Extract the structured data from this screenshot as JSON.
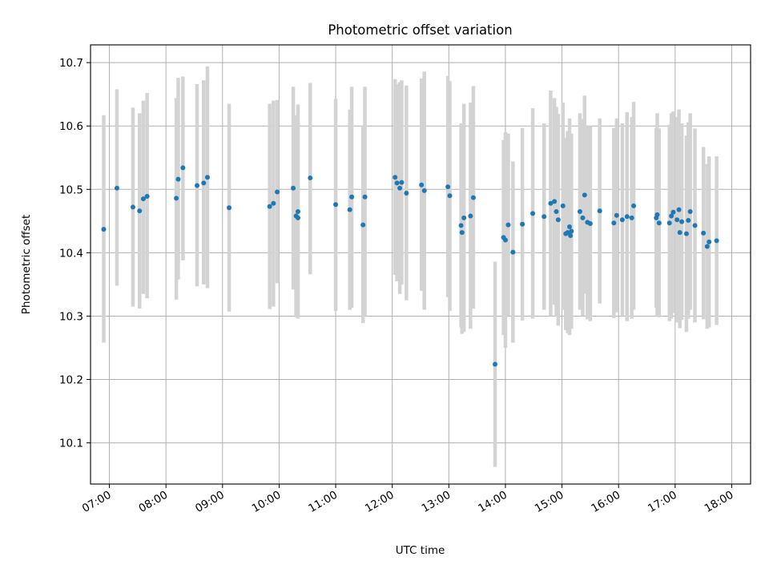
{
  "chart_data": {
    "type": "scatter",
    "title": "Photometric offset variation",
    "xlabel": "UTC time",
    "ylabel": "Photometric offset",
    "x_unit": "hours UTC",
    "xlim": [
      "06:40",
      "18:20"
    ],
    "ylim": [
      10.035,
      10.728
    ],
    "grid": true,
    "x_ticks": [
      "07:00",
      "08:00",
      "09:00",
      "10:00",
      "11:00",
      "12:00",
      "13:00",
      "14:00",
      "15:00",
      "16:00",
      "17:00",
      "18:00"
    ],
    "y_ticks": [
      "10.1",
      "10.2",
      "10.3",
      "10.4",
      "10.5",
      "10.6",
      "10.7"
    ],
    "colors": {
      "points": "#1f77b4",
      "errorbars": "#d3d3d3",
      "grid": "#b0b0b0"
    },
    "series": [
      {
        "x": [
          "06:54",
          "07:08",
          "07:25",
          "07:32",
          "07:36",
          "07:40",
          "08:11",
          "08:13",
          "08:18",
          "08:33",
          "08:40",
          "08:44",
          "09:07",
          "09:58",
          "09:50",
          "09:54",
          "10:15",
          "10:18",
          "10:20",
          "10:20",
          "10:33",
          "11:00",
          "11:15",
          "11:17",
          "11:29",
          "11:31",
          "12:03",
          "12:05",
          "12:08",
          "12:10",
          "12:15",
          "12:31",
          "12:34",
          "12:59",
          "13:01",
          "13:13",
          "13:14",
          "13:16",
          "13:23",
          "13:26",
          "13:49",
          "13:58",
          "14:00",
          "14:03",
          "14:08",
          "14:18",
          "14:29",
          "14:41",
          "14:48",
          "14:52",
          "14:54",
          "14:56",
          "15:01",
          "15:04",
          "15:06",
          "15:08",
          "15:09",
          "15:10",
          "15:19",
          "15:22",
          "15:24",
          "15:27",
          "15:30",
          "15:40",
          "15:55",
          "15:58",
          "16:04",
          "16:09",
          "16:14",
          "16:16",
          "16:40",
          "16:41",
          "16:43",
          "16:54",
          "16:56",
          "16:58",
          "17:02",
          "17:04",
          "17:05",
          "17:07",
          "17:12",
          "17:14",
          "17:16",
          "17:21",
          "17:30",
          "17:34",
          "17:36",
          "17:44"
        ],
        "y": [
          10.437,
          10.502,
          10.472,
          10.466,
          10.485,
          10.489,
          10.486,
          10.516,
          10.534,
          10.506,
          10.51,
          10.519,
          10.471,
          10.496,
          10.473,
          10.478,
          10.502,
          10.458,
          10.465,
          10.455,
          10.518,
          10.476,
          10.468,
          10.488,
          10.444,
          10.488,
          10.519,
          10.51,
          10.502,
          10.511,
          10.494,
          10.507,
          10.498,
          10.504,
          10.49,
          10.443,
          10.432,
          10.455,
          10.458,
          10.487,
          10.224,
          10.424,
          10.42,
          10.444,
          10.401,
          10.445,
          10.462,
          10.457,
          10.478,
          10.481,
          10.465,
          10.452,
          10.474,
          10.43,
          10.432,
          10.441,
          10.427,
          10.434,
          10.465,
          10.455,
          10.491,
          10.448,
          10.446,
          10.466,
          10.447,
          10.459,
          10.452,
          10.457,
          10.455,
          10.474,
          10.455,
          10.46,
          10.447,
          10.447,
          10.458,
          10.464,
          10.452,
          10.468,
          10.432,
          10.449,
          10.43,
          10.451,
          10.465,
          10.443,
          10.431,
          10.41,
          10.417,
          10.419
        ],
        "err_low": [
          10.258,
          10.348,
          10.315,
          10.312,
          10.335,
          10.328,
          10.326,
          10.358,
          10.388,
          10.347,
          10.35,
          10.344,
          10.307,
          10.352,
          10.311,
          10.315,
          10.342,
          10.298,
          10.296,
          10.3,
          10.366,
          10.308,
          10.31,
          10.313,
          10.289,
          10.3,
          10.365,
          10.355,
          10.335,
          10.35,
          10.325,
          10.34,
          10.31,
          10.33,
          10.308,
          10.282,
          10.272,
          10.275,
          10.28,
          10.312,
          10.062,
          10.27,
          10.25,
          10.3,
          10.258,
          10.293,
          10.296,
          10.31,
          10.3,
          10.318,
          10.3,
          10.285,
          10.31,
          10.278,
          10.273,
          10.27,
          10.285,
          10.28,
          10.31,
          10.3,
          10.335,
          10.295,
          10.292,
          10.32,
          10.297,
          10.306,
          10.3,
          10.292,
          10.296,
          10.31,
          10.313,
          10.3,
          10.298,
          10.292,
          10.296,
          10.305,
          10.29,
          10.31,
          10.281,
          10.294,
          10.275,
          10.296,
          10.31,
          10.29,
          10.295,
          10.28,
          10.282,
          10.286
        ],
        "err_high": [
          10.617,
          10.658,
          10.629,
          10.62,
          10.64,
          10.652,
          10.644,
          10.676,
          10.678,
          10.666,
          10.672,
          10.694,
          10.635,
          10.641,
          10.635,
          10.64,
          10.662,
          10.617,
          10.634,
          10.61,
          10.668,
          10.643,
          10.626,
          10.662,
          10.6,
          10.662,
          10.674,
          10.666,
          10.669,
          10.672,
          10.664,
          10.675,
          10.686,
          10.679,
          10.671,
          10.604,
          10.593,
          10.635,
          10.637,
          10.663,
          10.386,
          10.578,
          10.59,
          10.588,
          10.544,
          10.597,
          10.628,
          10.604,
          10.656,
          10.644,
          10.63,
          10.619,
          10.637,
          10.581,
          10.592,
          10.612,
          10.57,
          10.588,
          10.62,
          10.611,
          10.648,
          10.601,
          10.6,
          10.612,
          10.597,
          10.612,
          10.604,
          10.622,
          10.614,
          10.638,
          10.597,
          10.62,
          10.596,
          10.602,
          10.62,
          10.623,
          10.614,
          10.626,
          10.583,
          10.604,
          10.585,
          10.606,
          10.62,
          10.596,
          10.567,
          10.54,
          10.552,
          10.552
        ]
      }
    ]
  }
}
